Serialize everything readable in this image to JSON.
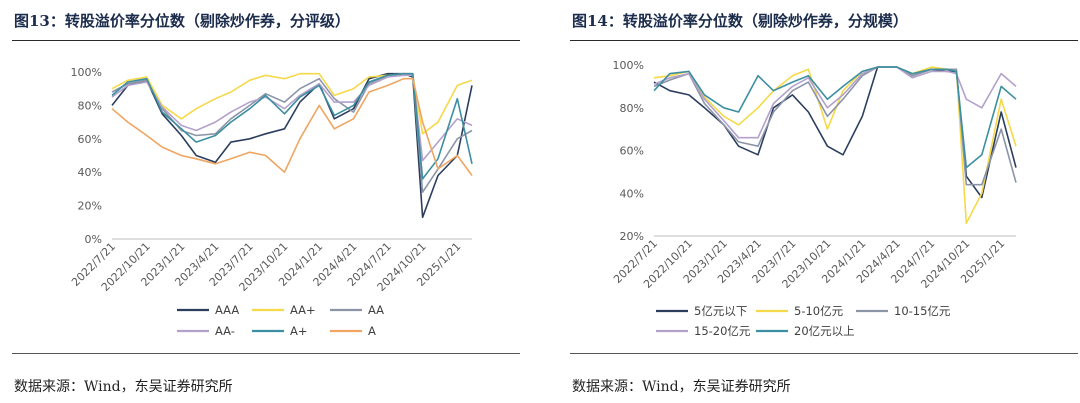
{
  "figures": [
    {
      "title": "图13：转股溢价率分位数（剔除炒作券，分评级）",
      "source": "数据来源：Wind，东吴证券研究所"
    },
    {
      "title": "图14：转股溢价率分位数（剔除炒作券，分规模）",
      "source": "数据来源：Wind，东吴证券研究所"
    }
  ],
  "chart_data": [
    {
      "type": "line",
      "title": "",
      "xlabel": "",
      "ylabel": "",
      "y_unit": "%",
      "ylim": [
        0,
        100
      ],
      "y_ticks": [
        0,
        20,
        40,
        60,
        80,
        100
      ],
      "y_tick_labels": [
        "0%",
        "20%",
        "40%",
        "60%",
        "80%",
        "100%"
      ],
      "x_tick_labels": [
        "2022/7/21",
        "2022/10/21",
        "2023/1/21",
        "2023/4/21",
        "2023/7/21",
        "2023/10/21",
        "2024/1/21",
        "2024/4/21",
        "2024/7/21",
        "2024/10/21",
        "2025/1/21"
      ],
      "x": [
        "2022/7/21",
        "2022/9/1",
        "2022/10/21",
        "2022/12/1",
        "2023/1/21",
        "2023/3/1",
        "2023/4/21",
        "2023/6/1",
        "2023/7/21",
        "2023/9/1",
        "2023/10/21",
        "2023/12/1",
        "2024/1/21",
        "2024/3/1",
        "2024/4/21",
        "2024/6/1",
        "2024/7/21",
        "2024/9/1",
        "2024/9/25",
        "2024/10/21",
        "2024/12/1",
        "2025/1/21",
        "2025/3/1"
      ],
      "grid": false,
      "legend": "bottom",
      "series": [
        {
          "name": "AAA",
          "color": "#2c3e5e",
          "values": [
            80,
            92,
            95,
            75,
            62,
            50,
            46,
            58,
            60,
            63,
            66,
            82,
            93,
            72,
            78,
            96,
            99,
            99,
            97,
            13,
            38,
            50,
            92
          ]
        },
        {
          "name": "AA+",
          "color": "#f5d94a",
          "values": [
            90,
            95,
            97,
            80,
            72,
            78,
            84,
            88,
            95,
            98,
            96,
            99,
            99,
            86,
            90,
            97,
            98,
            99,
            98,
            63,
            70,
            92,
            95
          ]
        },
        {
          "name": "AA",
          "color": "#8c95a8",
          "values": [
            88,
            93,
            95,
            78,
            65,
            62,
            63,
            72,
            80,
            87,
            82,
            90,
            96,
            84,
            76,
            93,
            98,
            99,
            99,
            28,
            42,
            60,
            65
          ]
        },
        {
          "name": "AA-",
          "color": "#b3a1cc",
          "values": [
            85,
            92,
            94,
            79,
            68,
            65,
            70,
            76,
            82,
            85,
            78,
            86,
            93,
            82,
            82,
            92,
            97,
            98,
            98,
            47,
            58,
            72,
            68
          ]
        },
        {
          "name": "A+",
          "color": "#3c8fa0",
          "values": [
            86,
            94,
            96,
            76,
            66,
            58,
            62,
            70,
            78,
            86,
            75,
            85,
            92,
            74,
            80,
            94,
            98,
            99,
            99,
            36,
            48,
            84,
            45
          ]
        },
        {
          "name": "A",
          "color": "#f0a560",
          "values": [
            78,
            70,
            62,
            55,
            50,
            48,
            45,
            48,
            52,
            50,
            40,
            60,
            80,
            66,
            72,
            88,
            92,
            96,
            96,
            70,
            42,
            50,
            38
          ]
        }
      ]
    },
    {
      "type": "line",
      "title": "",
      "xlabel": "",
      "ylabel": "",
      "y_unit": "%",
      "ylim": [
        20,
        100
      ],
      "y_ticks": [
        20,
        40,
        60,
        80,
        100
      ],
      "y_tick_labels": [
        "20%",
        "40%",
        "60%",
        "80%",
        "100%"
      ],
      "x_tick_labels": [
        "2022/7/21",
        "2022/10/21",
        "2023/1/21",
        "2023/4/21",
        "2023/7/21",
        "2023/10/21",
        "2024/1/21",
        "2024/4/21",
        "2024/7/21",
        "2024/10/21",
        "2025/1/21"
      ],
      "x": [
        "2022/7/21",
        "2022/9/1",
        "2022/10/21",
        "2022/12/1",
        "2023/1/21",
        "2023/3/1",
        "2023/4/21",
        "2023/6/1",
        "2023/7/21",
        "2023/9/1",
        "2023/10/21",
        "2023/12/1",
        "2024/1/21",
        "2024/3/1",
        "2024/4/21",
        "2024/6/1",
        "2024/7/21",
        "2024/9/1",
        "2024/9/25",
        "2024/10/21",
        "2024/12/1",
        "2025/1/21",
        "2025/3/1"
      ],
      "grid": false,
      "legend": "bottom",
      "series": [
        {
          "name": "5亿元以下",
          "color": "#2c3e5e",
          "values": [
            92,
            88,
            86,
            80,
            72,
            62,
            58,
            80,
            86,
            78,
            62,
            58,
            76,
            99,
            99,
            95,
            98,
            97,
            97,
            48,
            38,
            78,
            52
          ]
        },
        {
          "name": "5-10亿元",
          "color": "#f5d94a",
          "values": [
            94,
            95,
            97,
            85,
            76,
            72,
            80,
            88,
            95,
            98,
            70,
            88,
            97,
            99,
            99,
            96,
            99,
            98,
            98,
            26,
            40,
            84,
            62
          ]
        },
        {
          "name": "10-15亿元",
          "color": "#8c95a8",
          "values": [
            90,
            93,
            96,
            82,
            72,
            64,
            62,
            78,
            88,
            92,
            76,
            84,
            95,
            99,
            99,
            95,
            98,
            98,
            98,
            44,
            44,
            70,
            45
          ]
        },
        {
          "name": "15-20亿元",
          "color": "#b3a1cc",
          "values": [
            91,
            94,
            96,
            84,
            74,
            66,
            66,
            82,
            90,
            94,
            80,
            86,
            96,
            99,
            99,
            94,
            97,
            97,
            96,
            84,
            80,
            96,
            90
          ]
        },
        {
          "name": "20亿元以上",
          "color": "#3c8fa0",
          "values": [
            88,
            96,
            97,
            86,
            80,
            78,
            95,
            88,
            92,
            95,
            84,
            90,
            97,
            99,
            99,
            96,
            98,
            98,
            97,
            52,
            58,
            90,
            84
          ]
        }
      ]
    }
  ]
}
